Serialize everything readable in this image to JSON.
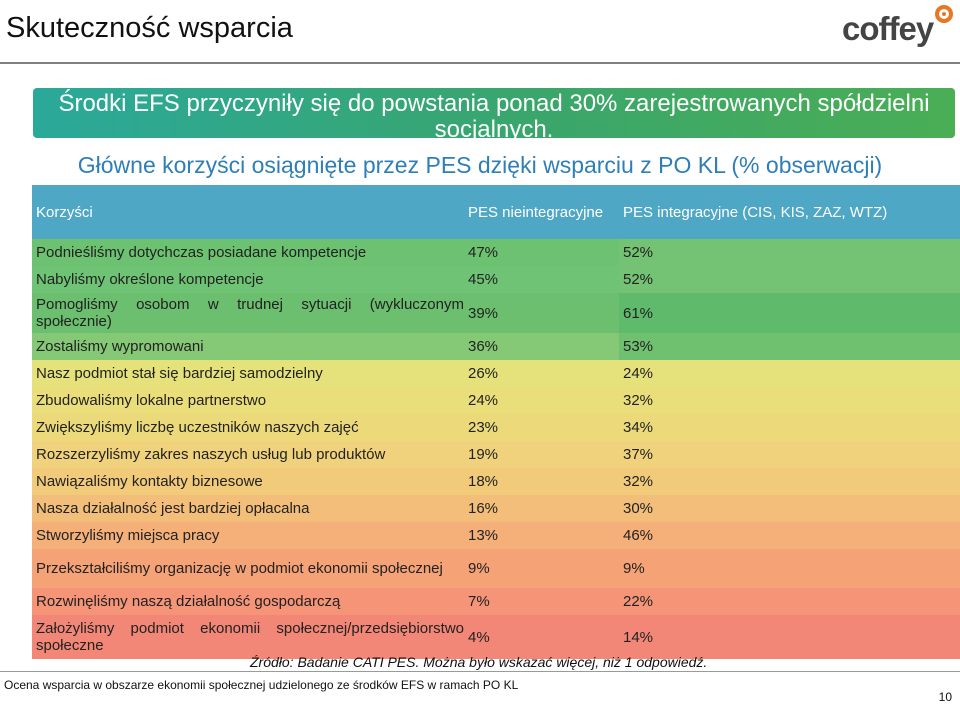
{
  "slide": {
    "title": "Skuteczność wsparcia",
    "logo_text": "coffey",
    "banner": "Środki EFS przyczyniły się do powstania ponad 30% zarejestrowanych spółdzielni socjalnych.",
    "chart_heading": "Główne korzyści osiągnięte przez PES dzięki wsparciu z PO KL (% obserwacji)",
    "source": "Źródło: Badanie CATI PES. Można było wskazać więcej, niż 1 odpowiedź.",
    "footer": "Ocena wsparcia w obszarze ekonomii społecznej udzielonego ze środków EFS w ramach PO KL",
    "page_number": "10",
    "colors": {
      "banner": "#2aa89a",
      "header": "#4fa7c6",
      "heading_text": "#2e7fb8"
    }
  },
  "table": {
    "headers": [
      "Korzyści",
      "PES nieintegracyjne",
      "PES integracyjne (CIS, KIS, ZAZ, WTZ)"
    ],
    "rows": [
      {
        "label": "Podnieśliśmy dotychczas posiadane kompetencje",
        "non_integration": "47%",
        "integration": "52%"
      },
      {
        "label": "Nabyliśmy określone kompetencje",
        "non_integration": "45%",
        "integration": "52%"
      },
      {
        "label": "Pomogliśmy osobom w trudnej sytuacji (wykluczonym społecznie)",
        "non_integration": "39%",
        "integration": "61%"
      },
      {
        "label": "Zostaliśmy wypromowani",
        "non_integration": "36%",
        "integration": "53%"
      },
      {
        "label": "Nasz podmiot stał się bardziej samodzielny",
        "non_integration": "26%",
        "integration": "24%"
      },
      {
        "label": "Zbudowaliśmy lokalne partnerstwo",
        "non_integration": "24%",
        "integration": "32%"
      },
      {
        "label": "Zwiększyliśmy liczbę uczestników naszych zajęć",
        "non_integration": "23%",
        "integration": "34%"
      },
      {
        "label": "Rozszerzyliśmy zakres naszych usług lub produktów",
        "non_integration": "19%",
        "integration": "37%"
      },
      {
        "label": "Nawiązaliśmy kontakty biznesowe",
        "non_integration": "18%",
        "integration": "32%"
      },
      {
        "label": "Nasza działalność jest bardziej opłacalna",
        "non_integration": "16%",
        "integration": "30%"
      },
      {
        "label": "Stworzyliśmy miejsca pracy",
        "non_integration": "13%",
        "integration": "46%"
      },
      {
        "label": "Przekształciliśmy organizację w podmiot ekonomii społecznej",
        "non_integration": "9%",
        "integration": "9%"
      },
      {
        "label": "Rozwinęliśmy naszą działalność gospodarczą",
        "non_integration": "7%",
        "integration": "22%"
      },
      {
        "label": "Założyliśmy podmiot ekonomii społecznej/przedsiębiorstwo społeczne",
        "non_integration": "4%",
        "integration": "14%"
      }
    ]
  }
}
